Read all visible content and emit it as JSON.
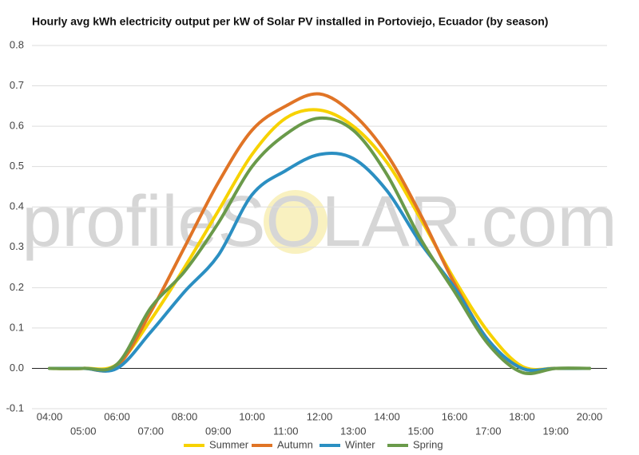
{
  "chart_data": {
    "type": "line",
    "title": "Hourly avg kWh electricity output per kW of Solar PV installed in Portoviejo, Ecuador (by season)",
    "watermark": "profileSOLAR.com",
    "categories": [
      "04:00",
      "05:00",
      "06:00",
      "07:00",
      "08:00",
      "09:00",
      "10:00",
      "11:00",
      "12:00",
      "13:00",
      "14:00",
      "15:00",
      "16:00",
      "17:00",
      "18:00",
      "19:00",
      "20:00"
    ],
    "series": [
      {
        "name": "Summer",
        "color": "#f7d200",
        "values": [
          0,
          0,
          0.01,
          0.12,
          0.25,
          0.39,
          0.53,
          0.62,
          0.64,
          0.6,
          0.51,
          0.37,
          0.22,
          0.09,
          0.005,
          0,
          0
        ]
      },
      {
        "name": "Autumn",
        "color": "#e07426",
        "values": [
          0,
          0,
          0.005,
          0.14,
          0.3,
          0.46,
          0.59,
          0.65,
          0.68,
          0.63,
          0.53,
          0.38,
          0.21,
          0.07,
          0,
          0,
          0
        ]
      },
      {
        "name": "Winter",
        "color": "#2b8fc2",
        "values": [
          0,
          0,
          0,
          0.09,
          0.19,
          0.28,
          0.43,
          0.49,
          0.53,
          0.52,
          0.44,
          0.31,
          0.2,
          0.07,
          0,
          0,
          0
        ]
      },
      {
        "name": "Spring",
        "color": "#6a9a4a",
        "values": [
          0,
          0,
          0.01,
          0.15,
          0.24,
          0.36,
          0.5,
          0.58,
          0.62,
          0.59,
          0.48,
          0.32,
          0.19,
          0.06,
          -0.01,
          0,
          0
        ]
      }
    ],
    "ylim": [
      -0.1,
      0.8
    ],
    "yticks": [
      -0.1,
      {
        "value": 0,
        "label": "0.0"
      },
      0.1,
      0.2,
      0.3,
      0.4,
      0.5,
      0.6,
      0.7,
      0.8
    ],
    "grid": true,
    "legend": "bottom"
  }
}
